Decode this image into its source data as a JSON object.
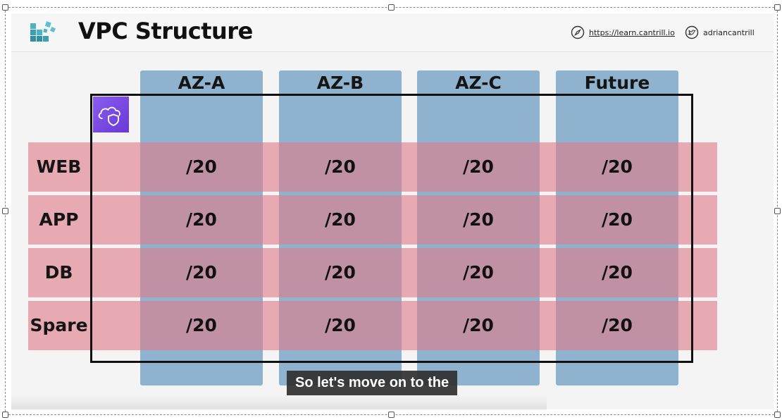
{
  "slide": {
    "title": "VPC Structure",
    "site_link": "https://learn.cantrill.io",
    "twitter_handle": "adriancantrill",
    "icons": {
      "logo": "aws-stack-logo-icon",
      "site": "compass-icon",
      "twitter": "twitter-bird-icon",
      "vpc": "vpc-cloud-shield-icon"
    }
  },
  "grid": {
    "columns": [
      "AZ-A",
      "AZ-B",
      "AZ-C",
      "Future"
    ],
    "rows": [
      {
        "label": "WEB",
        "cells": [
          "/20",
          "/20",
          "/20",
          "/20"
        ]
      },
      {
        "label": "APP",
        "cells": [
          "/20",
          "/20",
          "/20",
          "/20"
        ]
      },
      {
        "label": "DB",
        "cells": [
          "/20",
          "/20",
          "/20",
          "/20"
        ]
      },
      {
        "label": "Spare",
        "cells": [
          "/20",
          "/20",
          "/20",
          "/20"
        ]
      }
    ]
  },
  "caption": "So let's move on to the",
  "colors": {
    "az_column": "#8fb3cf",
    "tier_row": "#de7d89",
    "vpc_icon": "#7a4be6",
    "caption_bg": "#303030"
  }
}
